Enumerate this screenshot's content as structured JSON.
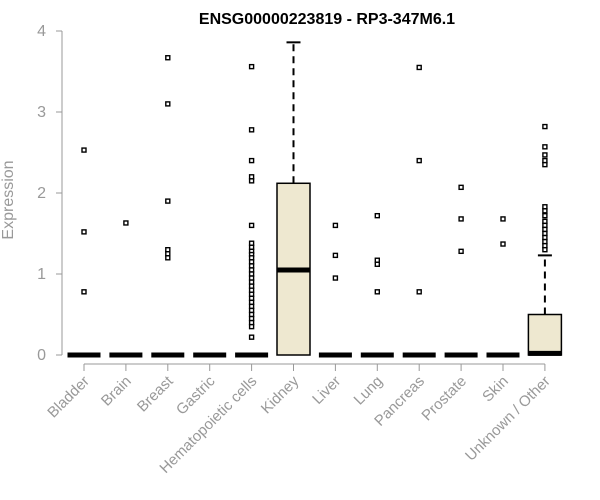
{
  "chart_data": {
    "type": "boxplot",
    "title": "ENSG00000223819 - RP3-347M6.1",
    "xlabel": "",
    "ylabel": "Expression",
    "ylim": [
      0,
      4
    ],
    "yticks": [
      0,
      1,
      2,
      3,
      4
    ],
    "grid": false,
    "box_color": "#EEE8D0",
    "categories": [
      "Bladder",
      "Brain",
      "Breast",
      "Gastric",
      "Hematopoietic cells",
      "Kidney",
      "Liver",
      "Lung",
      "Pancreas",
      "Prostate",
      "Skin",
      "Unknown / Other"
    ],
    "boxes": [
      {
        "category": "Bladder",
        "q1": 0,
        "median": 0,
        "q3": 0,
        "whisker_low": 0,
        "whisker_high": 0,
        "outliers": [
          2.53,
          1.52,
          0.78
        ]
      },
      {
        "category": "Brain",
        "q1": 0,
        "median": 0,
        "q3": 0,
        "whisker_low": 0,
        "whisker_high": 0,
        "outliers": [
          1.63
        ]
      },
      {
        "category": "Breast",
        "q1": 0,
        "median": 0,
        "q3": 0,
        "whisker_low": 0,
        "whisker_high": 0,
        "outliers": [
          3.67,
          3.1,
          1.9,
          1.3,
          1.25,
          1.2
        ]
      },
      {
        "category": "Gastric",
        "q1": 0,
        "median": 0,
        "q3": 0,
        "whisker_low": 0,
        "whisker_high": 0,
        "outliers": []
      },
      {
        "category": "Hematopoietic cells",
        "q1": 0,
        "median": 0,
        "q3": 0,
        "whisker_low": 0,
        "whisker_high": 0,
        "outliers": [
          3.56,
          2.78,
          2.4,
          2.2,
          2.15,
          1.6,
          1.38,
          1.33,
          1.28,
          1.24,
          1.2,
          1.15,
          1.1,
          1.05,
          1.0,
          0.95,
          0.9,
          0.85,
          0.8,
          0.75,
          0.7,
          0.65,
          0.6,
          0.55,
          0.5,
          0.45,
          0.4,
          0.35,
          0.22
        ]
      },
      {
        "category": "Kidney",
        "q1": 0,
        "median": 1.05,
        "q3": 2.12,
        "whisker_low": 0,
        "whisker_high": 3.86,
        "outliers": []
      },
      {
        "category": "Liver",
        "q1": 0,
        "median": 0,
        "q3": 0,
        "whisker_low": 0,
        "whisker_high": 0,
        "outliers": [
          1.6,
          1.23,
          0.95
        ]
      },
      {
        "category": "Lung",
        "q1": 0,
        "median": 0,
        "q3": 0,
        "whisker_low": 0,
        "whisker_high": 0,
        "outliers": [
          1.72,
          1.17,
          1.12,
          0.78
        ]
      },
      {
        "category": "Pancreas",
        "q1": 0,
        "median": 0,
        "q3": 0,
        "whisker_low": 0,
        "whisker_high": 0,
        "outliers": [
          3.55,
          2.4,
          0.78
        ]
      },
      {
        "category": "Prostate",
        "q1": 0,
        "median": 0,
        "q3": 0,
        "whisker_low": 0,
        "whisker_high": 0,
        "outliers": [
          2.07,
          1.68,
          1.28
        ]
      },
      {
        "category": "Skin",
        "q1": 0,
        "median": 0,
        "q3": 0,
        "whisker_low": 0,
        "whisker_high": 0,
        "outliers": [
          1.68,
          1.37
        ]
      },
      {
        "category": "Unknown / Other",
        "q1": 0,
        "median": 0.02,
        "q3": 0.5,
        "whisker_low": 0,
        "whisker_high": 1.23,
        "outliers": [
          2.82,
          2.57,
          2.47,
          2.4,
          2.35,
          1.83,
          1.78,
          1.72,
          1.65,
          1.6,
          1.55,
          1.5,
          1.45,
          1.4,
          1.35,
          1.3
        ]
      }
    ]
  }
}
